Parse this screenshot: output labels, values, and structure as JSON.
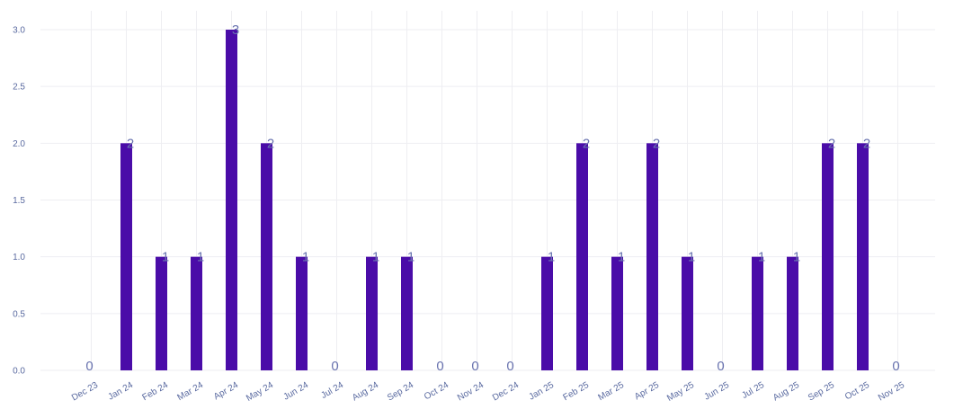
{
  "chart_data": {
    "type": "bar",
    "categories": [
      "Dec 23",
      "Jan 24",
      "Feb 24",
      "Mar 24",
      "Apr 24",
      "May 24",
      "Jun 24",
      "Jul 24",
      "Aug 24",
      "Sep 24",
      "Oct 24",
      "Nov 24",
      "Dec 24",
      "Jan 25",
      "Feb 25",
      "Mar 25",
      "Apr 25",
      "May 25",
      "Jun 25",
      "Jul 25",
      "Aug 25",
      "Sep 25",
      "Oct 25",
      "Nov 25"
    ],
    "values": [
      0,
      2,
      1,
      1,
      3,
      2,
      1,
      0,
      1,
      1,
      0,
      0,
      0,
      1,
      2,
      1,
      2,
      1,
      0,
      1,
      1,
      2,
      2,
      0
    ],
    "ylim": [
      0,
      3
    ],
    "yticks": [
      "0.0",
      "0.5",
      "1.0",
      "1.5",
      "2.0",
      "2.5",
      "3.0"
    ],
    "grid": true,
    "bar_color": "#4a0ca8",
    "label_color": "#6a74b0",
    "tick_color": "#5a6aa0"
  }
}
